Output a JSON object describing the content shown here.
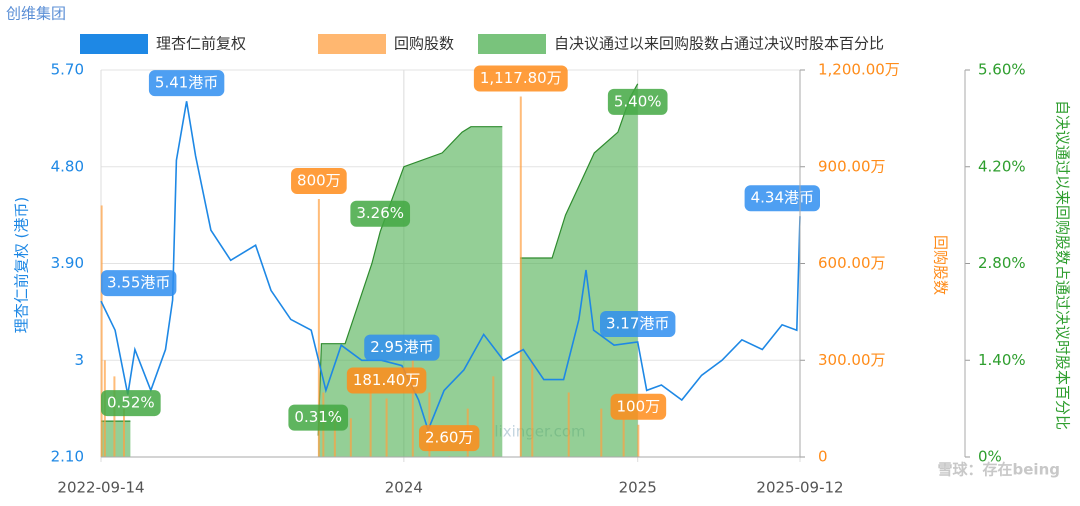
{
  "chart_data": {
    "type": "combo",
    "title": "创维集团",
    "watermark": "雪球：存在being",
    "site_watermark": "lixinger.com",
    "xlim": [
      "2022-09-14",
      "2025-09-12"
    ],
    "xticks": [
      {
        "value": "2022-09-14",
        "label": "2022-09-14"
      },
      {
        "value": "2024-01-01",
        "label": "2024"
      },
      {
        "value": "2025-01-01",
        "label": "2025"
      },
      {
        "value": "2025-09-12",
        "label": "2025-09-12"
      }
    ],
    "y_label": "理杏仁前复权 (港币)",
    "ylim": [
      2.1,
      5.7
    ],
    "yticks": [
      {
        "value": 2.1,
        "label": "2.10"
      },
      3,
      {
        "value": 3.9,
        "label": "3.90"
      },
      {
        "value": 4.8,
        "label": "4.80"
      },
      {
        "value": 5.7,
        "label": "5.70"
      }
    ],
    "y2_label": "回购股数",
    "y2lim": [
      0,
      1200
    ],
    "y2ticks": [
      0,
      {
        "value": 300,
        "label": "300.00万"
      },
      {
        "value": 600,
        "label": "600.00万"
      },
      {
        "value": 900,
        "label": "900.00万"
      },
      {
        "value": 1200,
        "label": "1,200.00万"
      }
    ],
    "y3_label": "自决议通过以来回购股数占通过决议时股本百分比",
    "y3lim": [
      0,
      5.6
    ],
    "y3ticks": [
      {
        "value": 0,
        "label": "0%"
      },
      {
        "value": 1.4,
        "label": "1.40%"
      },
      {
        "value": 2.8,
        "label": "2.80%"
      },
      {
        "value": 4.2,
        "label": "4.20%"
      },
      {
        "value": 5.6,
        "label": "5.60%"
      }
    ],
    "grid": true,
    "series": [
      {
        "name": "自决议通过以来回购股数占通过决议时股本百分比",
        "type": "area",
        "axis": "y3",
        "color": "#4caf50",
        "x": [
          "2022-09-14",
          "2022-10-30",
          "2022-10-31",
          "2023-08-20",
          "2023-08-25",
          "2023-10-01",
          "2023-11-12",
          "2023-11-25",
          "2024-01-01",
          "2024-03-01",
          "2024-04-01",
          "2024-04-15",
          "2024-06-03",
          "2024-06-04",
          "2024-07-01",
          "2024-08-20",
          "2024-09-10",
          "2024-10-05",
          "2024-10-25",
          "2024-12-01",
          "2024-12-20",
          "2025-01-01"
        ],
        "values": [
          0.52,
          0.52,
          null,
          0.31,
          1.64,
          1.64,
          2.8,
          3.26,
          4.2,
          4.4,
          4.7,
          4.78,
          4.78,
          null,
          2.88,
          2.88,
          3.5,
          4.0,
          4.4,
          4.7,
          5.2,
          5.4
        ],
        "value_labels": [
          "0.52%",
          null,
          null,
          "0.31%",
          null,
          null,
          null,
          "3.26%",
          null,
          null,
          null,
          null,
          null,
          null,
          null,
          null,
          null,
          null,
          null,
          null,
          null,
          "5.40%"
        ]
      },
      {
        "name": "回购股数",
        "type": "bar",
        "axis": "y2",
        "color": "#ff9f40",
        "x": [
          "2022-09-15",
          "2022-09-20",
          "2022-10-05",
          "2022-10-20",
          "2023-08-21",
          "2023-08-28",
          "2023-09-15",
          "2023-10-10",
          "2023-11-10",
          "2023-12-05",
          "2024-01-15",
          "2024-02-10",
          "2024-03-12",
          "2024-04-10",
          "2024-05-20",
          "2024-07-02",
          "2024-07-20",
          "2024-09-15",
          "2024-11-05",
          "2024-12-10",
          "2025-01-02"
        ],
        "values": [
          780,
          300,
          250,
          150,
          800,
          200,
          150,
          120,
          250,
          181.4,
          300,
          200,
          2.6,
          150,
          250,
          1117.8,
          300,
          200,
          150,
          120,
          100
        ],
        "value_labels": [
          null,
          null,
          null,
          null,
          "800万",
          null,
          null,
          null,
          null,
          "181.40万",
          null,
          null,
          "2.60万",
          null,
          null,
          "1,117.80万",
          null,
          null,
          null,
          null,
          "100万"
        ]
      },
      {
        "name": "理杏仁前复权",
        "type": "line",
        "axis": "y",
        "color": "#1e88e5",
        "x": [
          "2022-09-14",
          "2022-10-06",
          "2022-10-26",
          "2022-11-06",
          "2022-12-01",
          "2022-12-24",
          "2023-01-04",
          "2023-01-10",
          "2023-01-26",
          "2023-02-09",
          "2023-03-05",
          "2023-04-05",
          "2023-05-14",
          "2023-06-07",
          "2023-07-08",
          "2023-08-09",
          "2023-09-01",
          "2023-09-25",
          "2023-10-27",
          "2023-11-27",
          "2023-12-29",
          "2024-01-24",
          "2024-02-08",
          "2024-03-04",
          "2024-04-04",
          "2024-05-05",
          "2024-06-05",
          "2024-07-06",
          "2024-08-07",
          "2024-09-07",
          "2024-10-01",
          "2024-10-12",
          "2024-10-24",
          "2024-11-25",
          "2025-01-01",
          "2025-01-15",
          "2025-02-07",
          "2025-03-11",
          "2025-04-11",
          "2025-05-13",
          "2025-06-13",
          "2025-07-15",
          "2025-08-15",
          "2025-09-07",
          "2025-09-12"
        ],
        "values": [
          3.55,
          3.28,
          2.68,
          3.1,
          2.72,
          3.1,
          3.56,
          4.86,
          5.41,
          4.9,
          4.21,
          3.93,
          4.07,
          3.65,
          3.38,
          3.28,
          2.72,
          3.14,
          3.0,
          3.0,
          2.95,
          2.63,
          2.35,
          2.72,
          2.91,
          3.24,
          3.0,
          3.1,
          2.82,
          2.82,
          3.38,
          3.84,
          3.28,
          3.14,
          3.17,
          2.72,
          2.77,
          2.63,
          2.86,
          3.0,
          3.19,
          3.1,
          3.33,
          3.28,
          4.34
        ],
        "value_labels": [
          "3.55港币",
          null,
          null,
          null,
          null,
          null,
          null,
          null,
          "5.41港币",
          null,
          null,
          null,
          null,
          null,
          null,
          null,
          null,
          null,
          null,
          null,
          "2.95港币",
          null,
          null,
          null,
          null,
          null,
          null,
          null,
          null,
          null,
          null,
          null,
          null,
          null,
          "3.17港币",
          null,
          null,
          null,
          null,
          null,
          null,
          null,
          null,
          null,
          "4.34港币"
        ]
      }
    ]
  }
}
